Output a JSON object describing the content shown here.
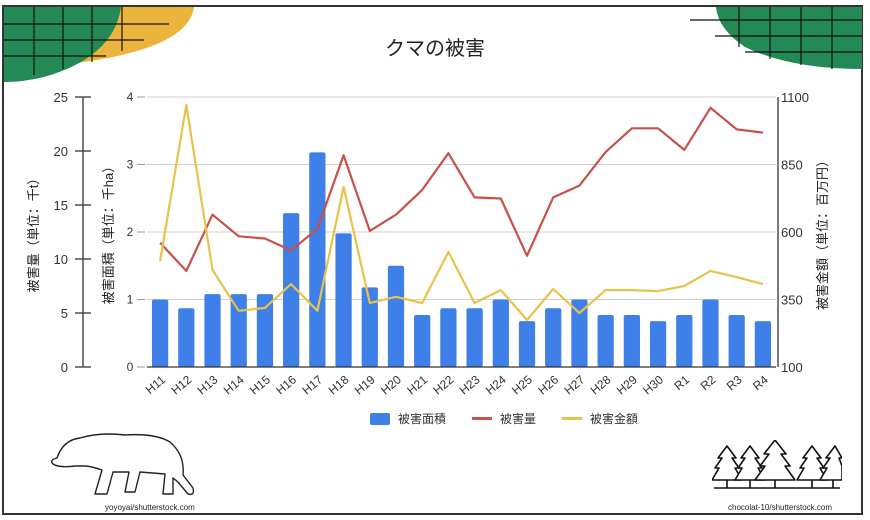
{
  "title": "クマの被害",
  "credits": {
    "left": "yoyoyai/shutterstock.com",
    "right": "chocolat-10/shutterstock.com"
  },
  "colors": {
    "area_bar": "#3f7fe8",
    "amount_line": "#c9504a",
    "money_line": "#e8c24a",
    "corner_green": "#238a55",
    "corner_yellow": "#ebb43c",
    "grid": "#d0d0d0"
  },
  "axes": {
    "left_outer": {
      "label": "被害量（単位：千t）",
      "ticks": [
        "0",
        "5",
        "10",
        "15",
        "20",
        "25"
      ]
    },
    "left_inner": {
      "label": "被害面積（単位：千ha）",
      "ticks": [
        "0",
        "1",
        "2",
        "3",
        "4"
      ]
    },
    "right": {
      "label": "被害金額（単位：百万円）",
      "ticks": [
        "100",
        "350",
        "600",
        "850",
        "1100"
      ]
    }
  },
  "legend": [
    {
      "label": "被害面積",
      "kind": "bar",
      "color": "#3f7fe8"
    },
    {
      "label": "被害量",
      "kind": "line",
      "color": "#c9504a"
    },
    {
      "label": "被害金額",
      "kind": "line",
      "color": "#e8c24a"
    }
  ],
  "chart_data": {
    "type": "bar+line",
    "title": "クマの被害",
    "categories": [
      "H11",
      "H12",
      "H13",
      "H14",
      "H15",
      "H16",
      "H17",
      "H18",
      "H19",
      "H20",
      "H21",
      "H22",
      "H23",
      "H24",
      "H25",
      "H26",
      "H27",
      "H28",
      "H29",
      "H30",
      "R1",
      "R2",
      "R3",
      "R4"
    ],
    "series": [
      {
        "name": "被害面積",
        "type": "bar",
        "axis": "left_inner",
        "unit": "千ha",
        "values": [
          1.0,
          0.87,
          1.08,
          1.08,
          1.08,
          2.28,
          3.18,
          1.98,
          1.18,
          1.5,
          0.77,
          0.87,
          0.87,
          1.0,
          0.68,
          0.87,
          1.0,
          0.77,
          0.77,
          0.68,
          0.77,
          1.0,
          0.77,
          0.68
        ]
      },
      {
        "name": "被害量",
        "type": "line",
        "axis": "left_outer",
        "unit": "千t",
        "values": [
          11.5,
          8.9,
          14.1,
          12.1,
          11.9,
          10.8,
          12.8,
          19.6,
          12.6,
          14.1,
          16.4,
          19.8,
          15.7,
          15.6,
          10.3,
          15.7,
          16.8,
          19.9,
          22.1,
          22.1,
          20.1,
          24.0,
          22.0,
          21.7
        ]
      },
      {
        "name": "被害金額",
        "type": "line",
        "axis": "right",
        "unit": "百万円",
        "values": [
          493,
          1070,
          460,
          308,
          319,
          407,
          308,
          767,
          337,
          360,
          337,
          526,
          337,
          385,
          274,
          389,
          300,
          385,
          385,
          381,
          400,
          456,
          433,
          407
        ]
      }
    ],
    "ylim_left_outer": [
      0,
      25
    ],
    "ylim_left_inner": [
      0,
      4
    ],
    "ylim_right": [
      100,
      1100
    ],
    "ylabel_left_outer": "被害量（単位：千t）",
    "ylabel_left_inner": "被害面積（単位：千ha）",
    "ylabel_right": "被害金額（単位：百万円）",
    "xlabel": "",
    "grid": true,
    "legend_position": "bottom"
  }
}
